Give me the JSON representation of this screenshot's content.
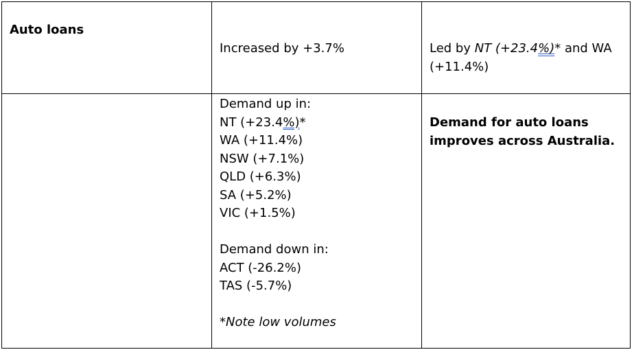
{
  "row1": {
    "category": "Auto loans",
    "change": "Increased by +3.7%",
    "leaders": {
      "prefix": "Led by ",
      "nt_label": "NT ",
      "nt_open": "(+23.4",
      "nt_underlined": "%)",
      "nt_star": "*",
      "middle": " and WA",
      "line2": "(+11.4%)"
    }
  },
  "row2": {
    "up_heading": "Demand up in:",
    "up_items": {
      "nt_main": "NT (+23.4",
      "nt_underlined": "%)",
      "nt_star": "*",
      "wa": "WA (+11.4%)",
      "nsw": "NSW (+7.1%)",
      "qld": "QLD (+6.3%)",
      "sa": "SA (+5.2%)",
      "vic": "VIC (+1.5%)"
    },
    "down_heading": "Demand down in:",
    "down_items": {
      "act": "ACT (-26.2%)",
      "tas": "TAS (-5.7%)"
    },
    "note": "*Note low volumes",
    "summary_line1": "Demand for auto loans",
    "summary_line2": "improves across Australia."
  }
}
